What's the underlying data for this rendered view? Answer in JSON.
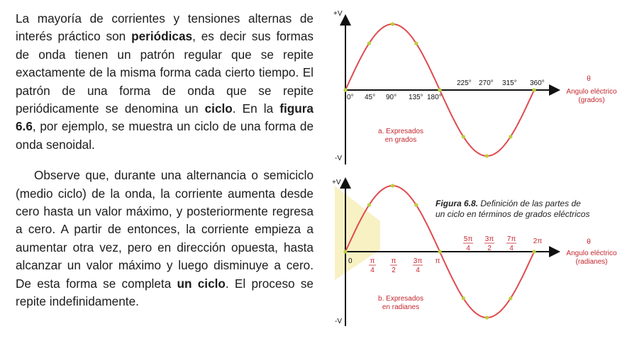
{
  "paragraph1": {
    "t1": "La mayoría de corrientes y tensiones alternas de interés práctico son ",
    "b1": "periódicas",
    "t2": ", es decir sus formas de onda tienen un patrón regular que se repite exactamente de la misma forma cada cierto tiempo. El patrón de una forma de onda que se repite periódicamente se denomina un ",
    "b2": "ciclo",
    "t3": ". En la ",
    "b3": "figura 6.6",
    "t4": ", por ejemplo, se muestra un ciclo de una forma de onda senoidal."
  },
  "paragraph2": {
    "t1": "Observe que, durante una alternancia o semiciclo (medio ciclo) de la onda, la corriente aumenta desde cero hasta un valor máximo, y posteriormente regresa a cero. A partir de entonces, la corriente empieza a aumentar otra vez, pero en dirección opuesta, hasta alcanzar un valor máximo y luego disminuye a cero. De esta forma se completa ",
    "b1": "un ciclo",
    "t2": ". El proceso se repite indefinidamente."
  },
  "figure": {
    "caption_label": "Figura 6.8.",
    "caption_text_1": "Definición de las partes de",
    "caption_text_2": "un ciclo en términos de grados eléctricos",
    "colors": {
      "wave": "#e04a4f",
      "marker": "#b9cf3b",
      "text_red": "#c4262e",
      "highlight": "#f7f1c4"
    },
    "top": {
      "pos_label": "+V",
      "neg_label": "-V",
      "zero": "0°",
      "ticks_below": [
        "45°",
        "90°",
        "135°",
        "180°"
      ],
      "ticks_above": [
        "225°",
        "270°",
        "315°",
        "360°"
      ],
      "theta": "θ",
      "axis_label_1": "Angulo eléctrico",
      "axis_label_2": "(grados)",
      "sub_1": "a. Expresados",
      "sub_2": "en grados"
    },
    "bottom": {
      "pos_label": "+V",
      "neg_label": "-V",
      "zero": "0",
      "below": [
        {
          "num": "π",
          "den": "4"
        },
        {
          "num": "π",
          "den": "2"
        },
        {
          "num": "3π",
          "den": "4"
        }
      ],
      "pi": "π",
      "above": [
        {
          "num": "5π",
          "den": "4"
        },
        {
          "num": "3π",
          "den": "2"
        },
        {
          "num": "7π",
          "den": "4"
        }
      ],
      "two_pi": "2π",
      "theta": "θ",
      "axis_label_1": "Angulo eléctrico",
      "axis_label_2": "(radianes)",
      "sub_1": "b. Expresados",
      "sub_2": "en radianes"
    }
  }
}
